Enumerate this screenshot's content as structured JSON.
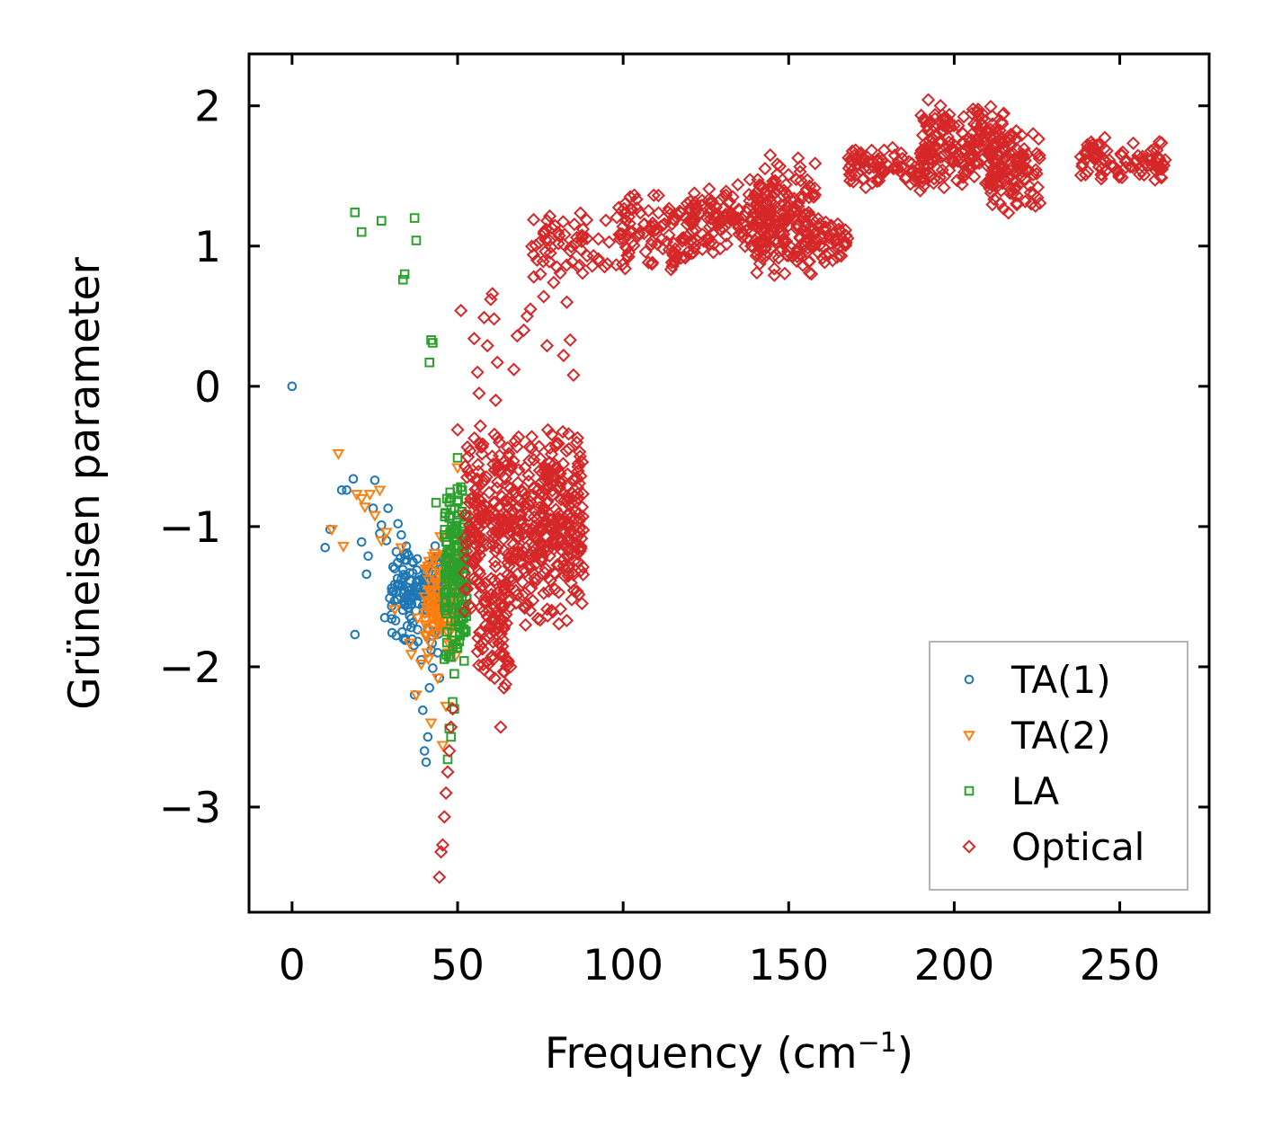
{
  "chart_data": {
    "type": "scatter",
    "title": "",
    "xlabel": "Frequency (cm",
    "xlabel_sup": "−1",
    "xlabel_close": ")",
    "ylabel": "Grüneisen parameter",
    "xlim": [
      -13,
      277
    ],
    "ylim": [
      -3.75,
      2.37
    ],
    "x_ticks": [
      {
        "value": 0,
        "label": "0"
      },
      {
        "value": 50,
        "label": "50"
      },
      {
        "value": 100,
        "label": "100"
      },
      {
        "value": 150,
        "label": "150"
      },
      {
        "value": 200,
        "label": "200"
      },
      {
        "value": 250,
        "label": "250"
      }
    ],
    "y_ticks": [
      {
        "value": 2,
        "label": "2"
      },
      {
        "value": 1,
        "label": "1"
      },
      {
        "value": 0,
        "label": "0"
      },
      {
        "value": -1,
        "label": "−1"
      },
      {
        "value": -2,
        "label": "−2"
      },
      {
        "value": -3,
        "label": "−3"
      }
    ],
    "legend_position": "lower-right",
    "series": [
      {
        "name": "TA(1)",
        "marker": "circle",
        "color": "#1f77b4",
        "points": [
          [
            0,
            0
          ],
          [
            10,
            -1.15
          ],
          [
            11.5,
            -1.02
          ],
          [
            15,
            -0.74
          ],
          [
            16.5,
            -0.74
          ],
          [
            18.5,
            -0.66
          ],
          [
            19,
            -1.77
          ],
          [
            21,
            -1.11
          ],
          [
            22.5,
            -1.34
          ],
          [
            23,
            -1.21
          ],
          [
            24.5,
            -0.87
          ],
          [
            25,
            -0.67
          ],
          [
            26.5,
            -1.05
          ],
          [
            27,
            -0.99
          ],
          [
            28,
            -1.65
          ],
          [
            28.5,
            -1.1
          ],
          [
            29,
            -0.87
          ],
          [
            29.5,
            -1.51
          ],
          [
            30,
            -1.63
          ],
          [
            31,
            -1.3
          ],
          [
            31.5,
            -1.18
          ],
          [
            32,
            -0.98
          ],
          [
            32.5,
            -1.41
          ],
          [
            33,
            -1.06
          ],
          [
            34,
            -1.2
          ],
          [
            34.5,
            -1.14
          ],
          [
            35,
            -1.58
          ],
          [
            35.5,
            -1.33
          ],
          [
            36,
            -1.72
          ],
          [
            36.5,
            -1.25
          ],
          [
            37,
            -2.2
          ],
          [
            37.5,
            -1.48
          ],
          [
            38,
            -1.82
          ],
          [
            38.5,
            -1.38
          ],
          [
            39,
            -1.95
          ],
          [
            39.5,
            -2.31
          ],
          [
            40,
            -2.6
          ],
          [
            40.5,
            -2.68
          ],
          [
            41,
            -2.5
          ],
          [
            41.5,
            -2.15
          ],
          [
            42,
            -1.88
          ],
          [
            42.5,
            -2.01
          ],
          [
            43,
            -1.75
          ],
          [
            43.5,
            -1.62
          ],
          [
            44,
            -1.9
          ],
          [
            44.5,
            -2.08
          ],
          [
            45,
            -1.55
          ]
        ],
        "cloud": [
          [
            30,
            46,
            -1.9,
            -1.05,
            140
          ]
        ]
      },
      {
        "name": "TA(2)",
        "marker": "triangle-down",
        "color": "#ff7f0e",
        "points": [
          [
            14,
            -0.48
          ],
          [
            12,
            -1.02
          ],
          [
            15.5,
            -1.14
          ],
          [
            19.5,
            -0.77
          ],
          [
            21,
            -0.8
          ],
          [
            22,
            -0.86
          ],
          [
            23.5,
            -0.77
          ],
          [
            25,
            -0.92
          ],
          [
            26.5,
            -0.74
          ],
          [
            27,
            -1.1
          ],
          [
            28.5,
            -1.04
          ],
          [
            31,
            -1.59
          ],
          [
            33,
            -1.15
          ],
          [
            35.5,
            -1.83
          ],
          [
            36,
            -1.91
          ],
          [
            37.5,
            -2.2
          ],
          [
            38,
            -1.65
          ],
          [
            39,
            -1.98
          ],
          [
            41,
            -1.28
          ],
          [
            42,
            -2.4
          ],
          [
            43,
            -1.76
          ],
          [
            44,
            -2.08
          ],
          [
            45,
            -1.5
          ],
          [
            45.5,
            -2.56
          ],
          [
            46,
            -1.2
          ],
          [
            46.5,
            -2.28
          ],
          [
            47,
            -1.9
          ],
          [
            48,
            -1.32
          ],
          [
            49,
            -1.6
          ],
          [
            50,
            -0.58
          ]
        ],
        "cloud": [
          [
            40,
            50,
            -2.0,
            -1.05,
            120
          ]
        ]
      },
      {
        "name": "LA",
        "marker": "square",
        "color": "#2ca02c",
        "points": [
          [
            19,
            1.24
          ],
          [
            21,
            1.1
          ],
          [
            27,
            1.18
          ],
          [
            33.5,
            0.76
          ],
          [
            34,
            0.8
          ],
          [
            37,
            1.2
          ],
          [
            37.5,
            1.04
          ],
          [
            42,
            0.33
          ],
          [
            42.5,
            0.31
          ],
          [
            41.5,
            0.17
          ],
          [
            43.5,
            -0.83
          ],
          [
            46,
            -1.06
          ],
          [
            47,
            -2.66
          ],
          [
            47.5,
            -2.44
          ],
          [
            48,
            -2.5
          ],
          [
            48.5,
            -2.25
          ],
          [
            49,
            -2.05
          ],
          [
            49,
            -2.3
          ],
          [
            50,
            -0.51
          ],
          [
            50.5,
            -1.82
          ],
          [
            51,
            -1.4
          ],
          [
            52,
            -1.18
          ]
        ],
        "cloud": [
          [
            46,
            53,
            -2.0,
            -0.6,
            170
          ]
        ]
      },
      {
        "name": "Optical",
        "marker": "diamond",
        "color": "#d62728",
        "points": [
          [
            44.5,
            -3.5
          ],
          [
            45,
            -3.32
          ],
          [
            45.5,
            -3.27
          ],
          [
            46,
            -3.07
          ],
          [
            46.5,
            -2.9
          ],
          [
            47,
            -2.75
          ],
          [
            47.5,
            -2.6
          ],
          [
            48,
            -2.43
          ],
          [
            48.5,
            -2.3
          ],
          [
            50,
            -0.31
          ],
          [
            51,
            0.54
          ],
          [
            55,
            0.34
          ],
          [
            56,
            0.1
          ],
          [
            56.5,
            -0.05
          ],
          [
            58,
            0.49
          ],
          [
            59,
            0.29
          ],
          [
            60,
            0.62
          ],
          [
            60.5,
            0.66
          ],
          [
            61,
            0.48
          ],
          [
            61.5,
            -0.1
          ],
          [
            62,
            0.17
          ],
          [
            63,
            -2.43
          ],
          [
            64,
            -2.15
          ],
          [
            65,
            -1.95
          ],
          [
            66,
            -2.0
          ],
          [
            67,
            0.12
          ],
          [
            68,
            0.36
          ],
          [
            70,
            0.4
          ],
          [
            71,
            0.5
          ],
          [
            72,
            0.55
          ],
          [
            73,
            0.78
          ],
          [
            74,
            0.9
          ],
          [
            75,
            0.8
          ],
          [
            76,
            0.64
          ],
          [
            77,
            0.29
          ],
          [
            78,
            0.95
          ],
          [
            79,
            0.74
          ],
          [
            80,
            0.85
          ],
          [
            82,
            0.22
          ],
          [
            83,
            0.6
          ],
          [
            84,
            0.33
          ],
          [
            85,
            0.08
          ],
          [
            86,
            -0.4
          ],
          [
            87,
            -0.5
          ]
        ],
        "cloud": [
          [
            52,
            88,
            -1.75,
            -0.25,
            520
          ],
          [
            56,
            66,
            -2.2,
            -1.3,
            70
          ],
          [
            72,
            98,
            0.75,
            1.28,
            55
          ],
          [
            98,
            122,
            0.8,
            1.4,
            110
          ],
          [
            120,
            150,
            0.9,
            1.5,
            160
          ],
          [
            140,
            158,
            0.7,
            1.72,
            140
          ],
          [
            152,
            168,
            0.85,
            1.25,
            60
          ],
          [
            168,
            192,
            1.38,
            1.72,
            90
          ],
          [
            190,
            215,
            1.35,
            2.08,
            200
          ],
          [
            210,
            226,
            1.2,
            1.85,
            110
          ],
          [
            238,
            264,
            1.45,
            1.78,
            90
          ]
        ]
      }
    ]
  }
}
